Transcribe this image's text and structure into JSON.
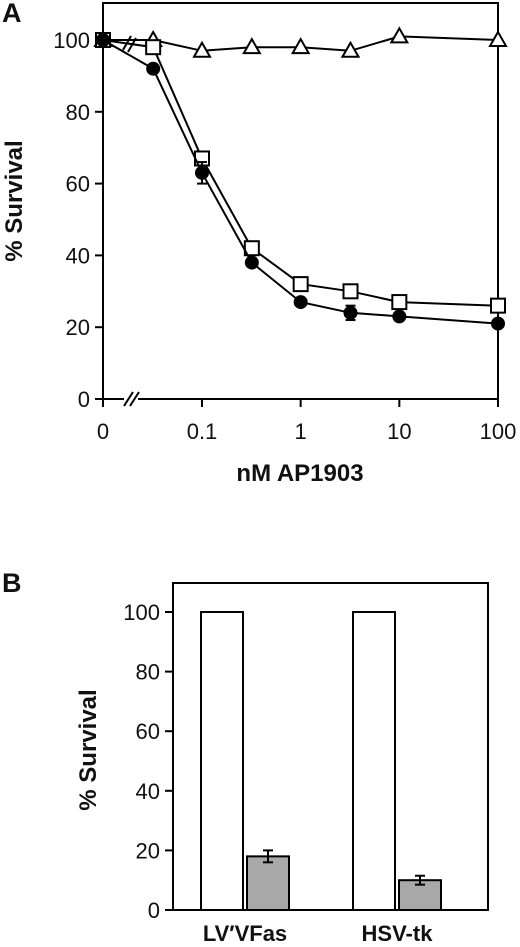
{
  "chart_data": [
    {
      "panel": "A",
      "type": "line",
      "xlabel": "nM AP1903",
      "ylabel": "% Survival",
      "x_scale": "log",
      "x_axis_break": true,
      "xlim": [
        0.01,
        100
      ],
      "ylim": [
        0,
        100
      ],
      "x_ticks": [
        0,
        0.1,
        1,
        10,
        100
      ],
      "x_tick_labels": [
        "0",
        "0.1",
        "1",
        "10",
        "100"
      ],
      "y_ticks": [
        0,
        20,
        40,
        60,
        80,
        100
      ],
      "y_tick_labels": [
        "0",
        "20",
        "40",
        "60",
        "80",
        "100"
      ],
      "grid": false,
      "series": [
        {
          "marker": "triangle-open",
          "color": "#000000",
          "points": [
            {
              "x": 0,
              "y": 100
            },
            {
              "x": 0.032,
              "y": 100
            },
            {
              "x": 0.1,
              "y": 97
            },
            {
              "x": 0.32,
              "y": 98
            },
            {
              "x": 1,
              "y": 98
            },
            {
              "x": 3.2,
              "y": 97
            },
            {
              "x": 10,
              "y": 101
            },
            {
              "x": 100,
              "y": 100
            }
          ]
        },
        {
          "marker": "square-open",
          "color": "#000000",
          "points": [
            {
              "x": 0,
              "y": 100
            },
            {
              "x": 0.032,
              "y": 98
            },
            {
              "x": 0.1,
              "y": 67
            },
            {
              "x": 0.32,
              "y": 42
            },
            {
              "x": 1,
              "y": 32
            },
            {
              "x": 3.2,
              "y": 30
            },
            {
              "x": 10,
              "y": 27
            },
            {
              "x": 100,
              "y": 26
            }
          ]
        },
        {
          "marker": "circle-filled",
          "color": "#000000",
          "points": [
            {
              "x": 0,
              "y": 100
            },
            {
              "x": 0.032,
              "y": 92
            },
            {
              "x": 0.1,
              "y": 63,
              "err": 3
            },
            {
              "x": 0.32,
              "y": 38
            },
            {
              "x": 1,
              "y": 27
            },
            {
              "x": 3.2,
              "y": 24,
              "err": 2
            },
            {
              "x": 10,
              "y": 23
            },
            {
              "x": 100,
              "y": 21
            }
          ]
        }
      ]
    },
    {
      "panel": "B",
      "type": "bar",
      "ylabel": "% Survival",
      "ylim": [
        0,
        100
      ],
      "y_ticks": [
        0,
        20,
        40,
        60,
        80,
        100
      ],
      "y_tick_labels": [
        "0",
        "20",
        "40",
        "60",
        "80",
        "100"
      ],
      "categories": [
        "LV′VFas",
        "HSV-tk"
      ],
      "grid": false,
      "series": [
        {
          "fill": "#ffffff",
          "values": [
            100,
            100
          ]
        },
        {
          "fill": "#a8a8a8",
          "values": [
            18,
            10
          ],
          "errors": [
            2,
            1.5
          ]
        }
      ]
    }
  ]
}
